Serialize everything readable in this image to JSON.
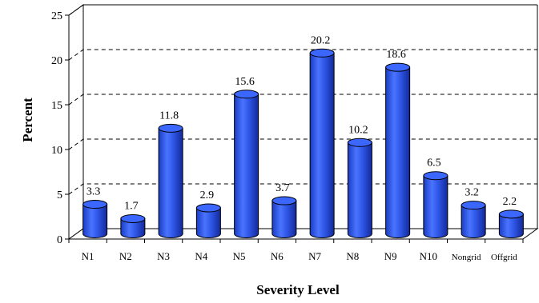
{
  "chart_data": {
    "type": "bar",
    "style": "3d-cylinder",
    "xlabel": "Severity Level",
    "ylabel": "Percent",
    "ylim": [
      0,
      25
    ],
    "yticks": [
      0,
      5,
      10,
      15,
      20,
      25
    ],
    "grid": "dashed horizontal",
    "legend": "none",
    "bar_color": "#2f57e8",
    "categories": [
      "N1",
      "N2",
      "N3",
      "N4",
      "N5",
      "N6",
      "N7",
      "N8",
      "N9",
      "N10",
      "Nongrid",
      "Offgrid"
    ],
    "values": [
      3.3,
      1.7,
      11.8,
      2.9,
      15.6,
      3.7,
      20.2,
      10.2,
      18.6,
      6.5,
      3.2,
      2.2
    ],
    "data_labels": [
      "3.3",
      "1.7",
      "11.8",
      "2.9",
      "15.6",
      "3.7",
      "20.2",
      "10.2",
      "18.6",
      "6.5",
      "3.2",
      "2.2"
    ]
  }
}
